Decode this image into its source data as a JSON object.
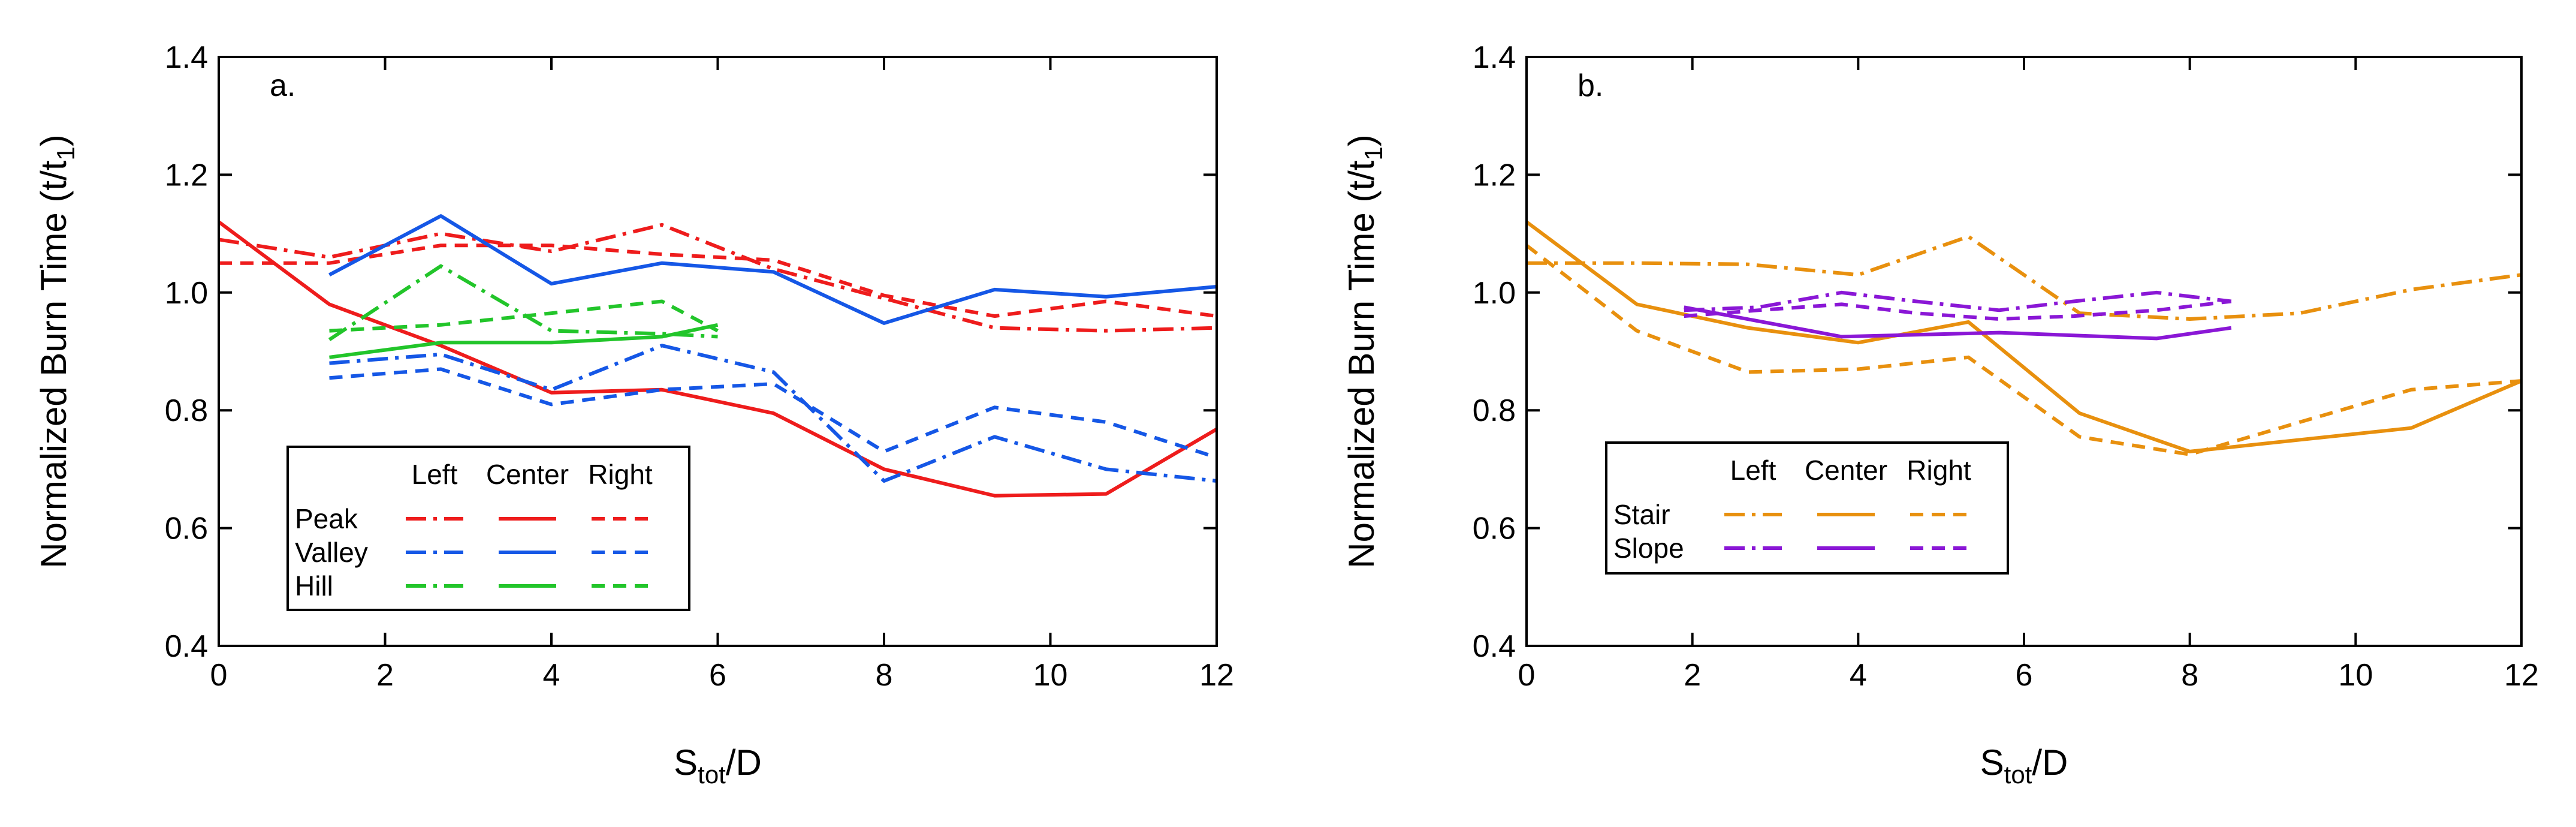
{
  "colors": {
    "Peak": "#ee1c1c",
    "Valley": "#1557e6",
    "Hill": "#22c52a",
    "Stair": "#e8900e",
    "Slope": "#8a17d6"
  },
  "chart_data": [
    {
      "type": "line",
      "panel_label": "a.",
      "ylabel_main": "Normalized Burn Time (t/t",
      "ylabel_sub": "1",
      "ylabel_close": ")",
      "xlabel_main": "S",
      "xlabel_sub": "tot",
      "xlabel_rest": "/D",
      "xlim": [
        0,
        12
      ],
      "ylim": [
        0.4,
        1.4
      ],
      "xticks": [
        "0",
        "2",
        "4",
        "6",
        "8",
        "10",
        "12"
      ],
      "yticks": [
        "0.4",
        "0.6",
        "0.8",
        "1.0",
        "1.2",
        "1.4"
      ],
      "legend": {
        "position": "lower-left",
        "column_headers": [
          "Left",
          "Center",
          "Right"
        ],
        "rows": [
          "Peak",
          "Valley",
          "Hill"
        ]
      },
      "series": [
        {
          "group": "Peak",
          "position": "Left",
          "x": [
            0,
            1.33,
            2.67,
            4,
            5.33,
            6.67,
            8,
            9.33,
            10.67,
            12
          ],
          "y": [
            1.09,
            1.06,
            1.1,
            1.07,
            1.115,
            1.04,
            0.99,
            0.94,
            0.935,
            0.94
          ]
        },
        {
          "group": "Peak",
          "position": "Center",
          "x": [
            0,
            1.33,
            2.67,
            4,
            5.33,
            6.67,
            8,
            9.33,
            10.67,
            12
          ],
          "y": [
            1.12,
            0.98,
            0.91,
            0.83,
            0.835,
            0.795,
            0.7,
            0.655,
            0.658,
            0.768
          ]
        },
        {
          "group": "Peak",
          "position": "Right",
          "x": [
            0,
            1.33,
            2.67,
            4,
            5.33,
            6.67,
            8,
            9.33,
            10.67,
            12
          ],
          "y": [
            1.05,
            1.05,
            1.08,
            1.08,
            1.065,
            1.055,
            0.995,
            0.96,
            0.985,
            0.96
          ]
        },
        {
          "group": "Valley",
          "position": "Left",
          "x": [
            1.33,
            2.67,
            4,
            5.33,
            6.67,
            8,
            9.33,
            10.67,
            12
          ],
          "y": [
            0.88,
            0.895,
            0.835,
            0.91,
            0.865,
            0.68,
            0.755,
            0.7,
            0.68
          ]
        },
        {
          "group": "Valley",
          "position": "Center",
          "x": [
            1.33,
            2.67,
            4,
            5.33,
            6.67,
            8,
            9.33,
            10.67,
            12
          ],
          "y": [
            1.03,
            1.13,
            1.015,
            1.05,
            1.035,
            0.948,
            1.005,
            0.993,
            1.01
          ]
        },
        {
          "group": "Valley",
          "position": "Right",
          "x": [
            1.33,
            2.67,
            4,
            5.33,
            6.67,
            8,
            9.33,
            10.67,
            12
          ],
          "y": [
            0.855,
            0.87,
            0.81,
            0.835,
            0.845,
            0.73,
            0.805,
            0.78,
            0.72
          ]
        },
        {
          "group": "Hill",
          "position": "Left",
          "x": [
            1.33,
            2.67,
            4,
            5.33,
            6
          ],
          "y": [
            0.92,
            1.045,
            0.935,
            0.93,
            0.925
          ]
        },
        {
          "group": "Hill",
          "position": "Center",
          "x": [
            1.33,
            2.67,
            4,
            5.33,
            6
          ],
          "y": [
            0.89,
            0.915,
            0.915,
            0.925,
            0.945
          ]
        },
        {
          "group": "Hill",
          "position": "Right",
          "x": [
            1.33,
            2.67,
            4,
            5.33,
            6
          ],
          "y": [
            0.935,
            0.945,
            0.965,
            0.985,
            0.935
          ]
        }
      ]
    },
    {
      "type": "line",
      "panel_label": "b.",
      "ylabel_main": "Normalized Burn Time (t/t",
      "ylabel_sub": "1",
      "ylabel_close": ")",
      "xlabel_main": "S",
      "xlabel_sub": "tot",
      "xlabel_rest": "/D",
      "xlim": [
        0,
        12
      ],
      "ylim": [
        0.4,
        1.4
      ],
      "xticks": [
        "0",
        "2",
        "4",
        "6",
        "8",
        "10",
        "12"
      ],
      "yticks": [
        "0.4",
        "0.6",
        "0.8",
        "1.0",
        "1.2",
        "1.4"
      ],
      "legend": {
        "position": "center-left",
        "column_headers": [
          "Left",
          "Center",
          "Right"
        ],
        "rows": [
          "Stair",
          "Slope"
        ]
      },
      "series": [
        {
          "group": "Stair",
          "position": "Left",
          "x": [
            0,
            1.33,
            2.67,
            4,
            5.33,
            6.67,
            8,
            9.33,
            10.67,
            12
          ],
          "y": [
            1.05,
            1.05,
            1.048,
            1.03,
            1.095,
            0.965,
            0.955,
            0.965,
            1.005,
            1.03
          ]
        },
        {
          "group": "Stair",
          "position": "Center",
          "x": [
            0,
            1.33,
            2.67,
            4,
            5.33,
            6.67,
            8,
            9.33,
            10.67,
            12
          ],
          "y": [
            1.12,
            0.98,
            0.94,
            0.915,
            0.95,
            0.795,
            0.73,
            0.75,
            0.77,
            0.85
          ]
        },
        {
          "group": "Stair",
          "position": "Right",
          "x": [
            0,
            1.33,
            2.67,
            4,
            5.33,
            6.67,
            8,
            9.33,
            10.67,
            12
          ],
          "y": [
            1.08,
            0.935,
            0.865,
            0.87,
            0.89,
            0.755,
            0.725,
            0.78,
            0.835,
            0.85
          ]
        },
        {
          "group": "Slope",
          "position": "Left",
          "x": [
            1.9,
            2.8,
            3.8,
            4.7,
            5.7,
            6.6,
            7.6,
            8.5
          ],
          "y": [
            0.97,
            0.975,
            1.0,
            0.985,
            0.97,
            0.985,
            1.0,
            0.985
          ]
        },
        {
          "group": "Slope",
          "position": "Center",
          "x": [
            1.9,
            3.8,
            5.7,
            7.6,
            8.5
          ],
          "y": [
            0.975,
            0.925,
            0.932,
            0.922,
            0.94
          ]
        },
        {
          "group": "Slope",
          "position": "Right",
          "x": [
            1.9,
            2.8,
            3.8,
            4.7,
            5.7,
            6.6,
            7.6,
            8.5
          ],
          "y": [
            0.96,
            0.97,
            0.98,
            0.965,
            0.955,
            0.96,
            0.97,
            0.985
          ]
        }
      ]
    }
  ]
}
